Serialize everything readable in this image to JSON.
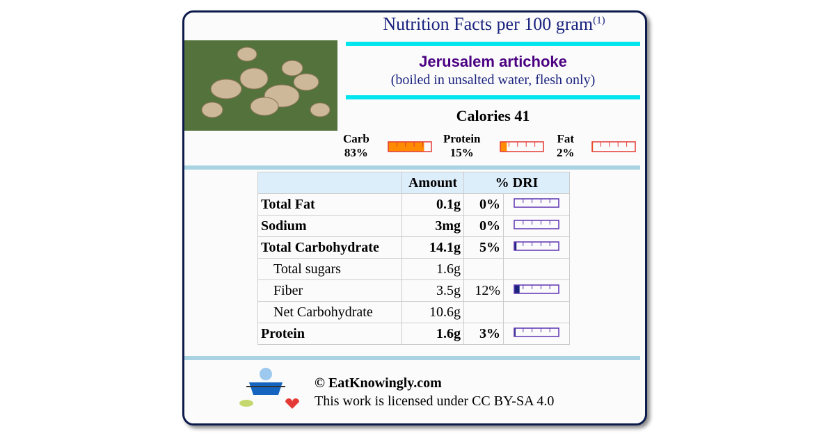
{
  "header": {
    "title": "Nutrition Facts per 100 gram",
    "note": "(1)"
  },
  "food": {
    "name": "Jerusalem artichoke",
    "description": "(boiled in unsalted water, flesh only)"
  },
  "calories": {
    "label": "Calories",
    "value": 41
  },
  "macros": [
    {
      "name": "Carb",
      "value": 83,
      "label": "83%",
      "color": "#ff8c00"
    },
    {
      "name": "Protein",
      "value": 15,
      "label": "15%",
      "color": "#ff8c00"
    },
    {
      "name": "Fat",
      "value": 2,
      "label": "2%",
      "color": "#ff8c00"
    }
  ],
  "table": {
    "header": {
      "amount": "Amount",
      "dri": "% DRI"
    },
    "rows": [
      {
        "name": "Total Fat",
        "amount": "0.1g",
        "dri": {
          "value": 0,
          "label": "0%"
        },
        "bold": true
      },
      {
        "name": "Sodium",
        "amount": "3mg",
        "dri": {
          "value": 0,
          "label": "0%"
        },
        "bold": true
      },
      {
        "name": "Total Carbohydrate",
        "amount": "14.1g",
        "dri": {
          "value": 5,
          "label": "5%"
        },
        "bold": true
      },
      {
        "name": "Total sugars",
        "amount": "1.6g",
        "bold": false
      },
      {
        "name": "Fiber",
        "amount": "3.5g",
        "dri": {
          "value": 12,
          "label": "12%"
        },
        "bold": false
      },
      {
        "name": "Net Carbohydrate",
        "amount": "10.6g",
        "bold": false
      },
      {
        "name": "Protein",
        "amount": "1.6g",
        "dri": {
          "value": 3,
          "label": "3%"
        },
        "bold": true
      }
    ]
  },
  "footer": {
    "copyright": "© EatKnowingly.com",
    "license": "This work is licensed under CC BY-SA 4.0"
  }
}
